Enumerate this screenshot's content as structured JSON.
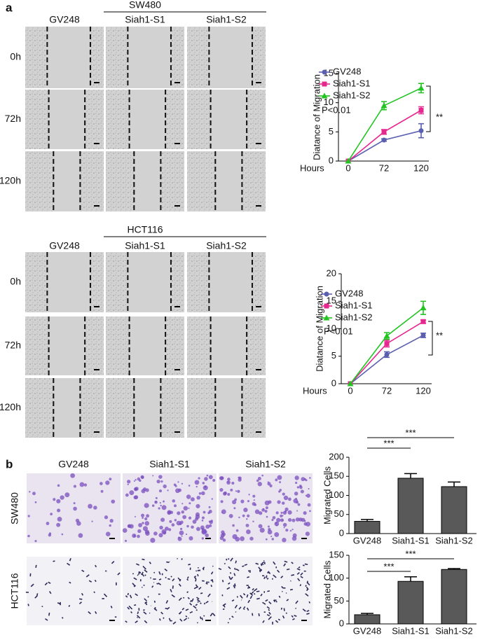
{
  "figure": {
    "panel_labels": [
      "a",
      "b"
    ],
    "wound": [
      {
        "cell_line": "SW480",
        "columns": [
          "GV248",
          "Siah1-S1",
          "Siah1-S2"
        ],
        "rows": [
          "0h",
          "72h",
          "120h"
        ]
      },
      {
        "cell_line": "HCT116",
        "columns": [
          "GV248",
          "Siah1-S1",
          "Siah1-S2"
        ],
        "rows": [
          "0h",
          "72h",
          "120h"
        ]
      }
    ],
    "transwell": {
      "columns": [
        "GV248",
        "Siah1-S1",
        "Siah1-S2"
      ],
      "rows": [
        "SW480",
        "HCT116"
      ]
    }
  },
  "chart_data": [
    {
      "type": "line",
      "x_label": "Hours",
      "y_label": "Diatance of Migration",
      "categories": [
        "0",
        "72",
        "120"
      ],
      "ylim": [
        0,
        15
      ],
      "yticks": [
        0,
        5,
        10,
        15
      ],
      "annotations": [
        "P<0.01",
        "**"
      ],
      "series": [
        {
          "name": "GV248",
          "color": "#5a5fb0",
          "values": [
            0,
            3.6,
            5.2
          ],
          "errors": [
            0,
            0.2,
            1.2
          ]
        },
        {
          "name": "Siah1-S1",
          "color": "#e6278f",
          "values": [
            0,
            5,
            8.7
          ],
          "errors": [
            0,
            0.4,
            0.6
          ]
        },
        {
          "name": "Siah1-S2",
          "color": "#22c422",
          "values": [
            0,
            9.5,
            12.5
          ],
          "errors": [
            0,
            0.7,
            0.8
          ]
        }
      ]
    },
    {
      "type": "line",
      "x_label": "Hours",
      "y_label": "Diatance of Migration",
      "categories": [
        "0",
        "72",
        "120"
      ],
      "ylim": [
        0,
        20
      ],
      "yticks": [
        0,
        5,
        10,
        15,
        20
      ],
      "annotations": [
        "P<0.01",
        "**"
      ],
      "series": [
        {
          "name": "GV248",
          "color": "#5a5fb0",
          "values": [
            0,
            5.3,
            8.8
          ],
          "errors": [
            0,
            0.5,
            0.4
          ]
        },
        {
          "name": "Siah1-S1",
          "color": "#e6278f",
          "values": [
            0,
            7.3,
            11.3
          ],
          "errors": [
            0,
            0.6,
            0.3
          ]
        },
        {
          "name": "Siah1-S2",
          "color": "#22c422",
          "values": [
            0,
            8.7,
            13.8
          ],
          "errors": [
            0,
            0.6,
            1.2
          ]
        }
      ]
    },
    {
      "type": "bar",
      "y_label": "Migrated  Cells",
      "categories": [
        "GV248",
        "Siah1-S1",
        "Siah1-S2"
      ],
      "values": [
        32,
        145,
        123
      ],
      "errors": [
        5,
        12,
        12
      ],
      "color": "#595959",
      "ylim": [
        0,
        200
      ],
      "yticks": [
        0,
        50,
        100,
        150,
        200
      ],
      "annotations": [
        "***",
        "***"
      ]
    },
    {
      "type": "bar",
      "y_label": "Migrated  Cells",
      "categories": [
        "GV248",
        "Siah1-S1",
        "Siah1-S2"
      ],
      "values": [
        20,
        93,
        119
      ],
      "errors": [
        3,
        10,
        2
      ],
      "color": "#595959",
      "ylim": [
        0,
        150
      ],
      "yticks": [
        0,
        50,
        100,
        150
      ],
      "annotations": [
        "***",
        "***"
      ]
    }
  ]
}
